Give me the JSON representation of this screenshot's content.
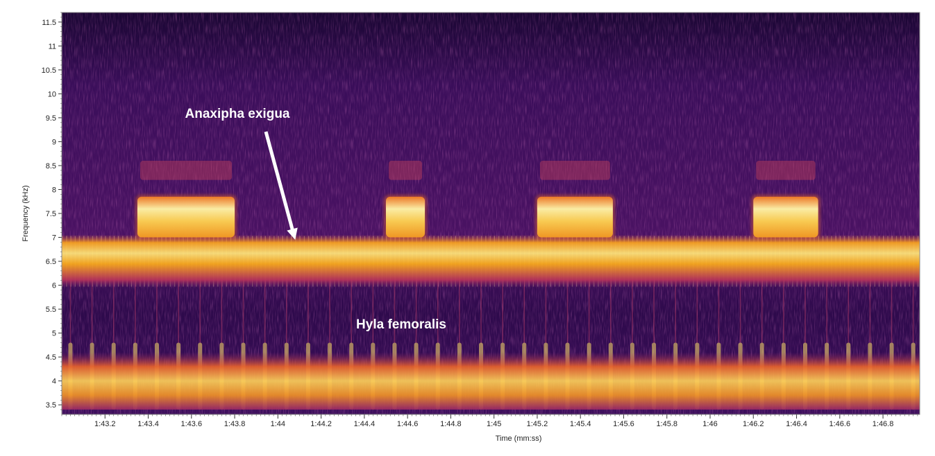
{
  "chart_data": {
    "type": "heatmap",
    "title": "",
    "xlabel": "Time (mm:ss)",
    "ylabel": "Frequency (kHz)",
    "xlim": [
      "1:43.0",
      "1:46.97"
    ],
    "ylim": [
      3.3,
      11.7
    ],
    "x_ticks": [
      "1:43.2",
      "1:43.4",
      "1:43.6",
      "1:43.8",
      "1:44",
      "1:44.2",
      "1:44.4",
      "1:44.6",
      "1:44.8",
      "1:45",
      "1:45.2",
      "1:45.4",
      "1:45.6",
      "1:45.8",
      "1:46",
      "1:46.2",
      "1:46.4",
      "1:46.6",
      "1:46.8"
    ],
    "y_ticks": [
      "3.5",
      "4",
      "4.5",
      "5",
      "5.5",
      "6",
      "6.5",
      "7",
      "7.5",
      "8",
      "8.5",
      "9",
      "9.5",
      "10",
      "10.5",
      "11",
      "11.5"
    ],
    "colormap": [
      "#000004",
      "#420a68",
      "#932667",
      "#dd513a",
      "#fca50a",
      "#fcffa4"
    ],
    "frog_band": {
      "freq_khz": [
        3.4,
        4.6
      ],
      "pulse_period_s": 0.1
    },
    "cricket_band": {
      "freq_khz": [
        6.0,
        7.0
      ],
      "pulse_period_s": 0.02
    },
    "cricket_bursts": [
      {
        "start": "1:43.35",
        "end": "1:43.8",
        "freq_khz": [
          7.0,
          7.85
        ]
      },
      {
        "start": "1:44.5",
        "end": "1:44.68",
        "freq_khz": [
          7.0,
          7.85
        ]
      },
      {
        "start": "1:45.2",
        "end": "1:45.55",
        "freq_khz": [
          7.0,
          7.85
        ]
      },
      {
        "start": "1:46.2",
        "end": "1:46.5",
        "freq_khz": [
          7.0,
          7.85
        ]
      }
    ],
    "annotations": [
      {
        "text": "Anaxipha exigua",
        "arrow_to": {
          "time": "1:44.08",
          "freq_khz": 6.95
        }
      },
      {
        "text": "Hyla femoralis"
      }
    ]
  }
}
